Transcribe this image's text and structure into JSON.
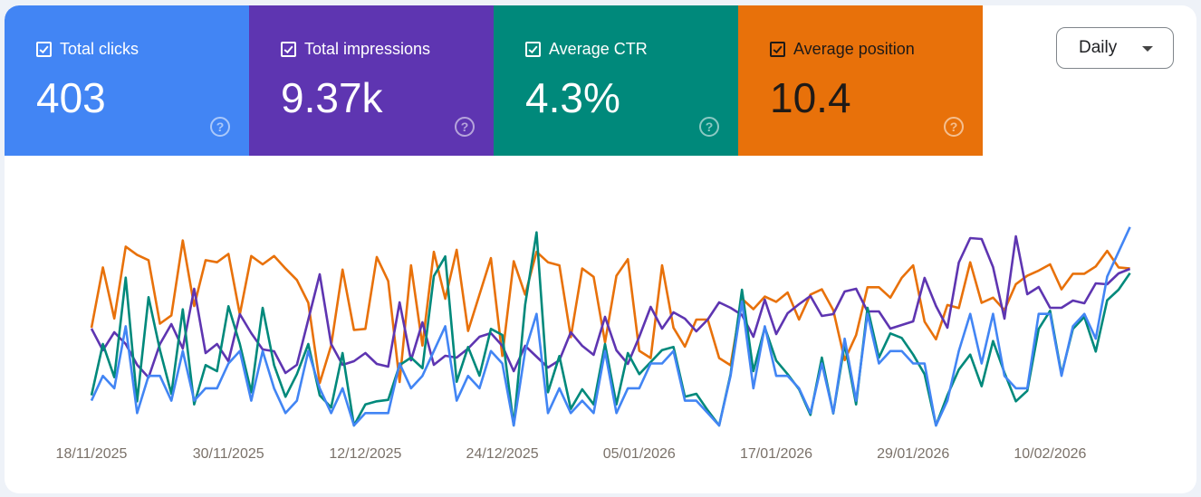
{
  "cards": [
    {
      "label": "Total clicks",
      "value": "403",
      "checked": true,
      "color": "#4285f4",
      "help_icon": "help-circle-icon"
    },
    {
      "label": "Total impressions",
      "value": "9.37k",
      "checked": true,
      "color": "#5e35b1",
      "help_icon": "help-circle-icon"
    },
    {
      "label": "Average CTR",
      "value": "4.3%",
      "checked": true,
      "color": "#00897b",
      "help_icon": "help-circle-icon"
    },
    {
      "label": "Average position",
      "value": "10.4",
      "checked": true,
      "color": "#e8710a",
      "help_icon": "help-circle-icon"
    }
  ],
  "granularity": {
    "selected": "Daily",
    "icon": "caret-down-icon"
  },
  "chart_data": {
    "type": "line",
    "x_start": "18/11/2025",
    "x_end": "17/02/2026",
    "x_step": "1 day",
    "x_tick_labels": [
      "18/11/2025",
      "30/11/2025",
      "12/12/2025",
      "24/12/2025",
      "05/01/2026",
      "17/01/2026",
      "29/01/2026",
      "10/02/2026"
    ],
    "grid": false,
    "series": [
      {
        "name": "Total clicks",
        "color": "#4285f4",
        "values": [
          2,
          4,
          3,
          8,
          1,
          4,
          4,
          2,
          6,
          2,
          3,
          3,
          5,
          6,
          2,
          6,
          3,
          1,
          2,
          6,
          3,
          1,
          3,
          0,
          1,
          1,
          1,
          5,
          3,
          4,
          6,
          8,
          2,
          4,
          3,
          6,
          5,
          0,
          6,
          9,
          1,
          3,
          1,
          2,
          1,
          6,
          1,
          3,
          3,
          5,
          5,
          6,
          2,
          2,
          1,
          0,
          4,
          10,
          3,
          8,
          4,
          4,
          3,
          1,
          5,
          1,
          7,
          2,
          9,
          5,
          6,
          6,
          5,
          5,
          0,
          2,
          6,
          9,
          5,
          9,
          4,
          3,
          3,
          9,
          9,
          4,
          8,
          9,
          7,
          12,
          14,
          16
        ]
      },
      {
        "name": "Total impressions",
        "color": "#5e35b1",
        "values": [
          107,
          83,
          103,
          90,
          67,
          53,
          90,
          112,
          85,
          151,
          80,
          90,
          71,
          123,
          102,
          84,
          82,
          58,
          67,
          117,
          167,
          90,
          67,
          71,
          80,
          68,
          65,
          136,
          72,
          114,
          67,
          77,
          75,
          85,
          98,
          102,
          88,
          60,
          88,
          76,
          64,
          72,
          103,
          88,
          78,
          120,
          83,
          68,
          98,
          131,
          107,
          125,
          118,
          104,
          117,
          136,
          130,
          122,
          98,
          139,
          101,
          124,
          134,
          143,
          121,
          123,
          148,
          151,
          126,
          126,
          107,
          111,
          115,
          163,
          132,
          108,
          180,
          207,
          206,
          175,
          118,
          209,
          145,
          153,
          130,
          130,
          138,
          135,
          157,
          156,
          168,
          173
        ]
      },
      {
        "name": "Average CTR",
        "color": "#00897b",
        "values": [
          2.0,
          5.4,
          3.2,
          9.8,
          1.6,
          8.5,
          5.0,
          2.1,
          7.7,
          1.4,
          4.0,
          3.6,
          7.9,
          5.4,
          2.2,
          7.8,
          4.0,
          1.9,
          3.4,
          5.4,
          2.0,
          1.2,
          4.8,
          0,
          1.4,
          1.6,
          1.7,
          4.0,
          4.5,
          3.8,
          9.9,
          11.2,
          2.9,
          5.2,
          3.3,
          6.4,
          6.0,
          0,
          8.0,
          12.8,
          2.2,
          4.6,
          1.1,
          2.4,
          1.4,
          5.4,
          1.4,
          4.8,
          3.4,
          4.2,
          5.0,
          5.2,
          1.9,
          2.1,
          1.0,
          0,
          3.4,
          9.0,
          3.6,
          6.5,
          4.3,
          3.4,
          2.4,
          0.7,
          4.5,
          0.8,
          5.4,
          1.4,
          7.8,
          4.5,
          6.1,
          5.8,
          4.7,
          3.4,
          0,
          2.0,
          3.7,
          4.7,
          2.6,
          5.6,
          3.5,
          1.6,
          2.3,
          6.4,
          7.6,
          3.4,
          6.4,
          7.2,
          4.9,
          8.3,
          9.0,
          10.1
        ]
      },
      {
        "name": "Average position",
        "color": "#e8710a",
        "inverted": true,
        "values": [
          14.1,
          8.3,
          13.2,
          6.3,
          7.1,
          7.6,
          13.7,
          12.9,
          5.7,
          12.0,
          7.6,
          7.8,
          7.0,
          12.8,
          7.2,
          8.0,
          7.2,
          8.4,
          9.5,
          11.7,
          19.4,
          15.8,
          8.5,
          14.3,
          14.2,
          7.3,
          9.6,
          19.3,
          8.1,
          15.8,
          6.8,
          11.3,
          6.6,
          14.4,
          10.9,
          7.4,
          16.8,
          7.7,
          10.9,
          6.8,
          7.8,
          8.1,
          15.0,
          8.4,
          9.2,
          15.5,
          9.1,
          7.5,
          16.3,
          17.0,
          8.1,
          14.1,
          15.9,
          13.3,
          13.3,
          17.0,
          17.7,
          11.3,
          12.3,
          11.1,
          11.6,
          10.7,
          13.3,
          10.9,
          10.4,
          12.4,
          17.2,
          14.8,
          10.2,
          10.2,
          11.2,
          9.3,
          8.1,
          13.5,
          15.2,
          11.9,
          12.2,
          7.8,
          11.7,
          11.2,
          12.4,
          9.9,
          9.1,
          8.6,
          8.0,
          10.4,
          8.9,
          8.9,
          8.2,
          6.7,
          8.3,
          8.4
        ]
      }
    ]
  }
}
